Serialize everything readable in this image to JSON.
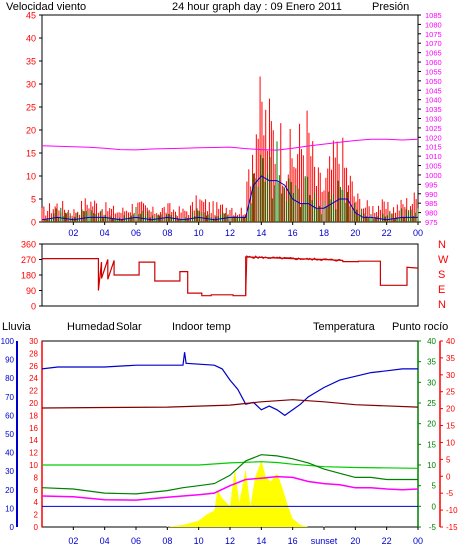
{
  "colors": {
    "wind_speed": "#ff0000",
    "wind_gust": "#ff0000",
    "wind_avg": "#008000",
    "wind_dir": "#cc0000",
    "pressure": "#ff00ff",
    "humidity": "#0000cc",
    "solar_area": "#ffff00",
    "solar_label": "#00cc00",
    "indoor": "#800000",
    "temperature": "#008000",
    "dew_point": "#ff00ff",
    "rain": "#ff0000",
    "title": "#0000cc",
    "axis": "#000000"
  },
  "chart_data": [
    {
      "type": "line",
      "panel": "wind-pressure",
      "title": "24 hour graph day : 09 Enero 2011",
      "ylabel_left": "Velocidad viento",
      "ylabel_right": "Presión",
      "ylim_left": [
        0,
        45
      ],
      "yticks_left": [
        "0",
        "5",
        "10",
        "15",
        "20",
        "25",
        "30",
        "35",
        "40",
        "45"
      ],
      "ylim_right": [
        975,
        1085
      ],
      "yticks_right": [
        "975",
        "980",
        "985",
        "990",
        "995",
        "1000",
        "1005",
        "1010",
        "1015",
        "1020",
        "1025",
        "1030",
        "1035",
        "1040",
        "1045",
        "1050",
        "1055",
        "1060",
        "1065",
        "1070",
        "1075",
        "1080",
        "1085"
      ],
      "xlabels": [
        "02",
        "04",
        "06",
        "08",
        "10",
        "12",
        "14",
        "16",
        "18",
        "20",
        "22",
        "00"
      ],
      "x_hours": [
        2,
        4,
        6,
        8,
        10,
        12,
        14,
        16,
        18,
        20,
        22,
        24
      ],
      "series": [
        {
          "role": "pressure",
          "axis": "right",
          "x": [
            0,
            1,
            2,
            3,
            4,
            5,
            6,
            7,
            8,
            9,
            10,
            11,
            12,
            13,
            14,
            15,
            16,
            17,
            18,
            19,
            20,
            21,
            22,
            23,
            24
          ],
          "values": [
            1015.5,
            1015.3,
            1015,
            1014.7,
            1014.2,
            1013.5,
            1013.3,
            1013.8,
            1014,
            1014.2,
            1014.5,
            1014.6,
            1014.8,
            1014,
            1013.5,
            1013.2,
            1014.2,
            1015.4,
            1016.4,
            1017.4,
            1018.3,
            1019,
            1019,
            1018.6,
            1019
          ]
        },
        {
          "role": "gust",
          "axis": "left",
          "x": [
            0,
            1,
            2,
            3,
            4,
            5,
            6,
            7,
            8,
            9,
            9.5,
            10,
            10.5,
            11,
            11.5,
            12,
            12.5,
            13,
            13.3,
            13.6,
            14,
            14.3,
            14.6,
            15,
            15.5,
            16,
            16.5,
            17,
            17.5,
            18,
            18.5,
            19,
            19.5,
            20,
            20.5,
            21,
            21.5,
            22,
            22.5,
            23,
            23.5,
            24
          ],
          "values": [
            3,
            5,
            3,
            6,
            4,
            3,
            5,
            3,
            4,
            3,
            4,
            6,
            5,
            4,
            4,
            5,
            3,
            4,
            20,
            28,
            30,
            28,
            26,
            24,
            20,
            18,
            22,
            25,
            12,
            10,
            16,
            20,
            14,
            7,
            5,
            4,
            5,
            4,
            4,
            5,
            6,
            7
          ]
        },
        {
          "role": "speed",
          "axis": "left",
          "x": [
            0,
            1,
            2,
            3,
            4,
            5,
            6,
            7,
            8,
            9,
            9.5,
            10,
            10.5,
            11,
            11.5,
            12,
            12.5,
            13,
            13.3,
            13.6,
            14,
            14.3,
            14.6,
            15,
            15.5,
            16,
            16.5,
            17,
            17.5,
            18,
            18.5,
            19,
            19.5,
            20,
            20.5,
            21,
            21.5,
            22,
            22.5,
            23,
            23.5,
            24
          ],
          "values": [
            1,
            3,
            2,
            3,
            2,
            1,
            3,
            2,
            2,
            1,
            2,
            3,
            3,
            2,
            2,
            3,
            1,
            2,
            12,
            16,
            15,
            13,
            14,
            16,
            10,
            8,
            10,
            9,
            6,
            5,
            7,
            9,
            6,
            4,
            3,
            2,
            2,
            2,
            2,
            3,
            3,
            3
          ]
        },
        {
          "role": "avg",
          "axis": "left",
          "x": [
            0,
            1,
            2,
            3,
            4,
            5,
            6,
            7,
            8,
            9,
            10,
            11,
            12,
            13,
            13.5,
            14,
            14.5,
            15,
            15.5,
            16,
            16.5,
            17,
            17.5,
            18,
            18.5,
            19,
            19.5,
            20,
            20.5,
            21,
            22,
            23,
            24
          ],
          "values": [
            0.5,
            1,
            0.5,
            1,
            1,
            0.5,
            1,
            0.5,
            1,
            0.5,
            1,
            0.5,
            1,
            1,
            8,
            10,
            9,
            9,
            8,
            5,
            4,
            4,
            3,
            3,
            4,
            5,
            5,
            2,
            1,
            1,
            0.5,
            1,
            1
          ]
        }
      ]
    },
    {
      "type": "line",
      "panel": "wind-direction",
      "ylim": [
        0,
        360
      ],
      "yticks": [
        "0",
        "90",
        "180",
        "270",
        "360"
      ],
      "compass": [
        "N",
        "W",
        "S",
        "E",
        "N"
      ],
      "series": [
        {
          "role": "direction",
          "x": [
            0,
            3.6,
            3.6,
            3.8,
            3.8,
            4.2,
            4.2,
            4.6,
            4.6,
            6.2,
            6.2,
            7.2,
            7.2,
            8.8,
            8.8,
            9.3,
            9.3,
            10.2,
            10.2,
            10.8,
            10.8,
            12.2,
            12.2,
            13.0,
            13.0,
            16,
            18,
            19.2,
            19.2,
            20.2,
            20.2,
            21.6,
            21.6,
            23.3,
            23.3,
            24
          ],
          "values": [
            275,
            275,
            90,
            255,
            160,
            270,
            155,
            265,
            180,
            180,
            255,
            255,
            145,
            145,
            200,
            200,
            75,
            75,
            60,
            60,
            65,
            65,
            60,
            60,
            285,
            275,
            270,
            265,
            258,
            258,
            260,
            260,
            120,
            120,
            225,
            220
          ]
        }
      ]
    },
    {
      "type": "line",
      "panel": "humidity-temperature",
      "labels": {
        "rain": "Lluvia",
        "humidity": "Humedad",
        "solar": "Solar",
        "indoor": "Indoor temp",
        "temperature": "Temperatura",
        "dew_point": "Punto rocío"
      },
      "axis_humidity": {
        "ylim": [
          0,
          100
        ],
        "ticks": [
          "0",
          "10",
          "20",
          "30",
          "40",
          "50",
          "60",
          "70",
          "80",
          "90",
          "100"
        ]
      },
      "axis_rain": {
        "ylim": [
          0,
          30
        ],
        "ticks": [
          "0",
          "2",
          "4",
          "6",
          "8",
          "10",
          "12",
          "14",
          "16",
          "18",
          "20",
          "22",
          "24",
          "26",
          "28",
          "30"
        ]
      },
      "axis_temp": {
        "ylim": [
          -5,
          40
        ],
        "ticks": [
          "-5",
          "0",
          "5",
          "10",
          "15",
          "20",
          "25",
          "30",
          "35",
          "40"
        ]
      },
      "axis_temp_right": {
        "ylim": [
          -15,
          40
        ],
        "ticks": [
          "-15",
          "-10",
          "-5",
          "0",
          "5",
          "10",
          "15",
          "20",
          "25",
          "30",
          "35",
          "40"
        ]
      },
      "xlabels": [
        "02",
        "04",
        "06",
        "08",
        "10",
        "12",
        "14",
        "16",
        "sunset",
        "20",
        "22",
        "00"
      ],
      "x_hours": [
        2,
        4,
        6,
        8,
        10,
        12,
        14,
        16,
        18,
        20,
        22,
        24
      ],
      "sunrise_hour": 8.0,
      "sunset_hour": 18.0,
      "series": [
        {
          "role": "humidity",
          "axis": "humidity",
          "x": [
            0,
            1,
            2,
            4,
            6,
            8,
            9,
            9.1,
            9.2,
            11,
            11.5,
            12,
            12.5,
            13,
            13.5,
            14,
            14.5,
            15,
            15.5,
            16,
            16.5,
            17,
            18,
            19,
            20,
            21,
            22,
            23,
            24
          ],
          "values": [
            85,
            86,
            86,
            86,
            87,
            87,
            87,
            94,
            88,
            87,
            85,
            79,
            74,
            66,
            67,
            63,
            65,
            63,
            60,
            63,
            66,
            70,
            75,
            79,
            81,
            83,
            84,
            85,
            85
          ]
        },
        {
          "role": "indoor",
          "axis": "temp",
          "x": [
            0,
            4,
            8,
            12,
            14,
            16,
            18,
            20,
            24
          ],
          "values": [
            23.8,
            23.9,
            24,
            24.5,
            25.3,
            25.8,
            25.3,
            24.6,
            24.0
          ]
        },
        {
          "role": "solar",
          "axis": "temp",
          "x": [
            0,
            4,
            8,
            10,
            12,
            14,
            15,
            16,
            18,
            20,
            24
          ],
          "values": [
            10,
            10,
            10,
            10,
            10.5,
            10.8,
            10.6,
            10.2,
            9.6,
            9.4,
            9.2
          ]
        },
        {
          "role": "temperature",
          "axis": "temp",
          "x": [
            0,
            2,
            4,
            6,
            8,
            9,
            10,
            11,
            12,
            13,
            14,
            15,
            16,
            17,
            18,
            19,
            20,
            21,
            22,
            23,
            24
          ],
          "values": [
            4.5,
            4.2,
            3.2,
            3,
            3.8,
            4.5,
            5,
            5.5,
            7.5,
            11,
            12.5,
            12.2,
            11.5,
            10.5,
            9,
            8,
            7,
            7,
            6.5,
            6.5,
            6.5
          ]
        },
        {
          "role": "dew_point",
          "axis": "temp",
          "x": [
            0,
            2,
            4,
            6,
            8,
            9,
            10,
            11,
            12,
            13,
            14,
            15,
            16,
            17,
            18,
            19,
            20,
            21,
            22,
            23,
            24
          ],
          "values": [
            2.5,
            2.3,
            1.6,
            1.5,
            2.2,
            2.5,
            2.8,
            3.2,
            5,
            6.5,
            6.8,
            7.2,
            7,
            6,
            5.5,
            5.2,
            4.5,
            4.5,
            4.2,
            4.0,
            4.2
          ]
        },
        {
          "role": "solar_area",
          "axis": "temp",
          "x": [
            8,
            9,
            10,
            10.5,
            11,
            11.2,
            11.5,
            12,
            12.3,
            12.6,
            13,
            13.3,
            13.6,
            14,
            14.3,
            14.6,
            15,
            15.3,
            15.7,
            16,
            16.5,
            17
          ],
          "values": [
            -5,
            -4.5,
            -3.5,
            -2,
            -1,
            4,
            2,
            0,
            9,
            1,
            9,
            0,
            7,
            11,
            7,
            6,
            8,
            5,
            0,
            -3,
            -4.5,
            -5
          ]
        }
      ]
    }
  ]
}
